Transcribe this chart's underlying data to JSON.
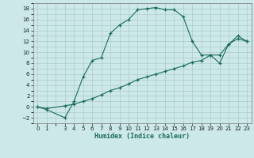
{
  "xlabel": "Humidex (Indice chaleur)",
  "ylabel": "",
  "bg_color": "#cce8e8",
  "grid_color": "#b0d4d4",
  "line_color": "#1a6b5a",
  "xlim": [
    -0.5,
    23.5
  ],
  "ylim": [
    -3,
    19
  ],
  "xticks": [
    0,
    1,
    3,
    4,
    5,
    6,
    7,
    8,
    9,
    10,
    11,
    12,
    13,
    14,
    15,
    16,
    17,
    18,
    19,
    20,
    21,
    22,
    23
  ],
  "yticks": [
    -2,
    0,
    2,
    4,
    6,
    8,
    10,
    12,
    14,
    16,
    18
  ],
  "curve1_x": [
    0,
    1,
    3,
    4,
    5,
    6,
    7,
    8,
    9,
    10,
    11,
    12,
    13,
    14,
    15,
    16,
    17,
    18,
    19,
    20,
    21,
    22,
    23
  ],
  "curve1_y": [
    0,
    -0.5,
    -2,
    1,
    5.5,
    8.5,
    9,
    13.5,
    15,
    16,
    17.8,
    18,
    18.2,
    17.8,
    17.8,
    16.5,
    12,
    9.5,
    9.5,
    8,
    11.5,
    13,
    12
  ],
  "curve2_x": [
    0,
    1,
    3,
    4,
    5,
    6,
    7,
    8,
    9,
    10,
    11,
    12,
    13,
    14,
    15,
    16,
    17,
    18,
    19,
    20,
    21,
    22,
    23
  ],
  "curve2_y": [
    0,
    -0.3,
    0.2,
    0.5,
    1.0,
    1.5,
    2.2,
    3.0,
    3.5,
    4.2,
    5.0,
    5.5,
    6.0,
    6.5,
    7.0,
    7.5,
    8.2,
    8.5,
    9.5,
    9.5,
    11.5,
    12.5,
    12
  ]
}
